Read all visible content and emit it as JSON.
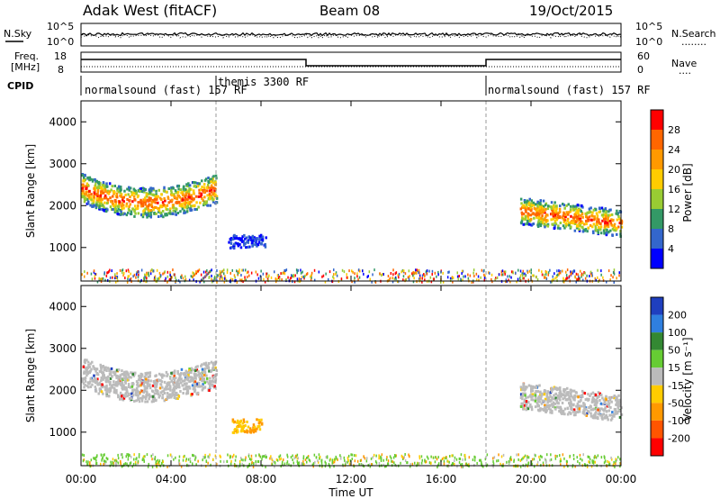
{
  "header": {
    "station": "Adak West (fitACF)",
    "beam": "Beam 08",
    "date": "19/Oct/2015"
  },
  "nsky_panel": {
    "left_label": "N.Sky",
    "right_label": "N.Search",
    "right_legend": "........",
    "left_ticks": [
      "10^5",
      "10^0"
    ],
    "right_ticks": [
      "10^5",
      "10^0"
    ]
  },
  "freq_panel": {
    "left_label_1": "Freq.",
    "left_label_2": "[MHz]",
    "right_label": "Nave",
    "right_legend": "....",
    "left_ticks": [
      "18",
      "8"
    ],
    "right_ticks": [
      "60",
      "0"
    ]
  },
  "cpid": {
    "label": "CPID",
    "segments": [
      {
        "label": "normalsound (fast) 157 RF",
        "start_hour": 0,
        "end_hour": 6
      },
      {
        "label": "themis 3300 RF",
        "start_hour": 6,
        "end_hour": 18
      },
      {
        "label": "normalsound (fast) 157 RF",
        "start_hour": 18,
        "end_hour": 24
      }
    ]
  },
  "power_colorbar": {
    "title": "Power [dB]",
    "ticks": [
      "28",
      "24",
      "20",
      "16",
      "12",
      "8",
      "4"
    ],
    "colors": [
      "#ff0000",
      "#ff6600",
      "#ff9900",
      "#ffcc00",
      "#99cc33",
      "#339966",
      "#3366cc",
      "#0000ff"
    ]
  },
  "velocity_colorbar": {
    "title": "Velocity [m s⁻¹]",
    "ticks": [
      "200",
      "100",
      "50",
      "15",
      "-15",
      "-50",
      "-100",
      "-200"
    ],
    "colors": [
      "#1f3fbf",
      "#2f7fdf",
      "#338833",
      "#66cc33",
      "#bbbbbb",
      "#ffcc00",
      "#ff9900",
      "#ff5500",
      "#ff0000"
    ]
  },
  "chart_data": [
    {
      "type": "heatmap",
      "name": "power",
      "xlabel": "",
      "ylabel": "Slant Range [km]",
      "xlim": [
        0,
        24
      ],
      "ylim": [
        200,
        4500
      ],
      "yticks": [
        "4000",
        "3000",
        "2000",
        "1000"
      ],
      "ytick_values": [
        4000,
        3000,
        2000,
        1000
      ],
      "regions": [
        {
          "start_hour": 0.0,
          "end_hour": 6.0,
          "range_low_km": 1600,
          "range_high_km": 2600,
          "peak_db": 28
        },
        {
          "start_hour": 6.5,
          "end_hour": 8.2,
          "range_low_km": 950,
          "range_high_km": 1400,
          "peak_db": 8
        },
        {
          "start_hour": 19.5,
          "end_hour": 24.0,
          "range_low_km": 1300,
          "range_high_km": 2200,
          "peak_db": 28
        }
      ]
    },
    {
      "type": "heatmap",
      "name": "velocity",
      "xlabel": "Time UT",
      "ylabel": "Slant Range [km]",
      "xlim": [
        0,
        24
      ],
      "ylim": [
        200,
        4500
      ],
      "yticks": [
        "4000",
        "3000",
        "2000",
        "1000"
      ],
      "ytick_values": [
        4000,
        3000,
        2000,
        1000
      ],
      "xticks": [
        "00:00",
        "04:00",
        "08:00",
        "12:00",
        "16:00",
        "20:00",
        "00:00"
      ],
      "xtick_values": [
        0,
        4,
        8,
        12,
        16,
        20,
        24
      ],
      "regions": [
        {
          "start_hour": 0.0,
          "end_hour": 6.0,
          "range_low_km": 1600,
          "range_high_km": 2600,
          "velocity_ms": 0
        },
        {
          "start_hour": 6.7,
          "end_hour": 8.0,
          "range_low_km": 950,
          "range_high_km": 1400,
          "velocity_ms": -50
        },
        {
          "start_hour": 19.5,
          "end_hour": 24.0,
          "range_low_km": 1300,
          "range_high_km": 2200,
          "velocity_ms": 0
        }
      ]
    }
  ]
}
